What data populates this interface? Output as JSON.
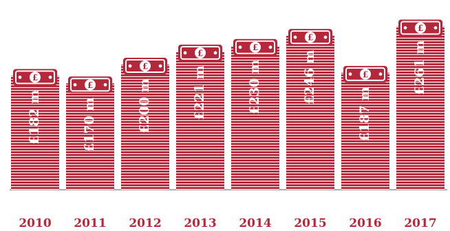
{
  "colors": {
    "accent": "#b5273a",
    "stripe": "#ffffff",
    "baseline": "#7a7a7a"
  },
  "chart_data": {
    "type": "bar",
    "title": "",
    "xlabel": "",
    "ylabel": "",
    "grid": false,
    "legend": "none",
    "currency_icon": "pound-banknote-icon",
    "categories": [
      "2010",
      "2011",
      "2012",
      "2013",
      "2014",
      "2015",
      "2016",
      "2017"
    ],
    "values": [
      182,
      170,
      200,
      221,
      230,
      246,
      187,
      261
    ],
    "value_labels": [
      "£182 m",
      "£170 m",
      "£200 m",
      "£221 m",
      "£230 m",
      "£246 m",
      "£187 m",
      "£261 m"
    ]
  }
}
